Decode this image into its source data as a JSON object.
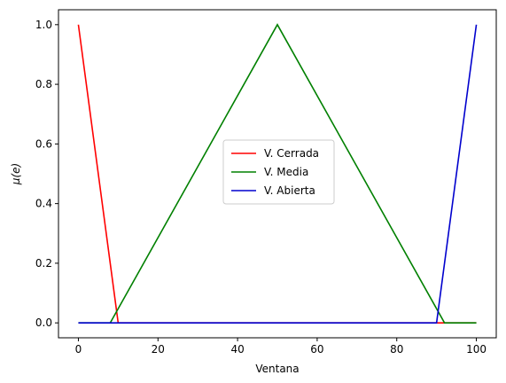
{
  "chart_data": {
    "type": "line",
    "xlabel": "Ventana",
    "ylabel": "μ(e)",
    "xlim": [
      -5,
      105
    ],
    "ylim": [
      -0.05,
      1.05
    ],
    "xticks": [
      0,
      20,
      40,
      60,
      80,
      100
    ],
    "yticks": [
      0.0,
      0.2,
      0.4,
      0.6,
      0.8,
      1.0
    ],
    "xtick_labels": [
      "0",
      "20",
      "40",
      "60",
      "80",
      "100"
    ],
    "ytick_labels": [
      "0.0",
      "0.2",
      "0.4",
      "0.6",
      "0.8",
      "1.0"
    ],
    "grid": false,
    "legend_position": "center",
    "series": [
      {
        "name": "V. Cerrada",
        "color": "#ff0000",
        "x": [
          0,
          10,
          100
        ],
        "y": [
          1,
          0,
          0
        ]
      },
      {
        "name": "V. Media",
        "color": "#008000",
        "x": [
          0,
          8,
          50,
          92,
          100
        ],
        "y": [
          0,
          0,
          1,
          0,
          0
        ]
      },
      {
        "name": "V. Abierta",
        "color": "#0000cd",
        "x": [
          0,
          90,
          100
        ],
        "y": [
          0,
          0,
          1
        ]
      }
    ]
  }
}
